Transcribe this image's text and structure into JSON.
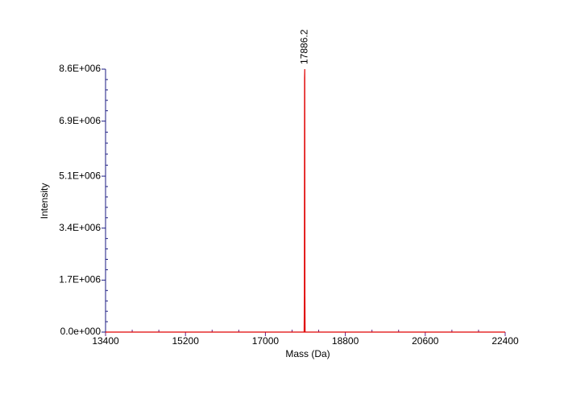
{
  "chart_data": {
    "type": "line",
    "xlabel": "Mass (Da)",
    "ylabel": "Intensity",
    "xlim": [
      13400,
      22400
    ],
    "xticks": [
      13400,
      15200,
      17000,
      18800,
      20600,
      22400
    ],
    "ylim": [
      0,
      8600000
    ],
    "yticks": [
      {
        "value": 0,
        "label": "0.0e+000"
      },
      {
        "value": 1700000,
        "label": "1.7E+006"
      },
      {
        "value": 3400000,
        "label": "3.4E+006"
      },
      {
        "value": 5100000,
        "label": "5.1E+006"
      },
      {
        "value": 6900000,
        "label": "6.9E+006"
      },
      {
        "value": 8600000,
        "label": "8.6E+006"
      }
    ],
    "series": [
      {
        "color": "#e00000",
        "x": [
          13400,
          17860,
          17872,
          17878,
          17882,
          17886.2,
          17890,
          17894,
          17900,
          22400
        ],
        "values": [
          0,
          0,
          0,
          1200000,
          8300000,
          8600000,
          1200000,
          0,
          0,
          0
        ]
      }
    ],
    "peak_labels": [
      {
        "x": 17886.2,
        "y": 8600000
      }
    ]
  }
}
